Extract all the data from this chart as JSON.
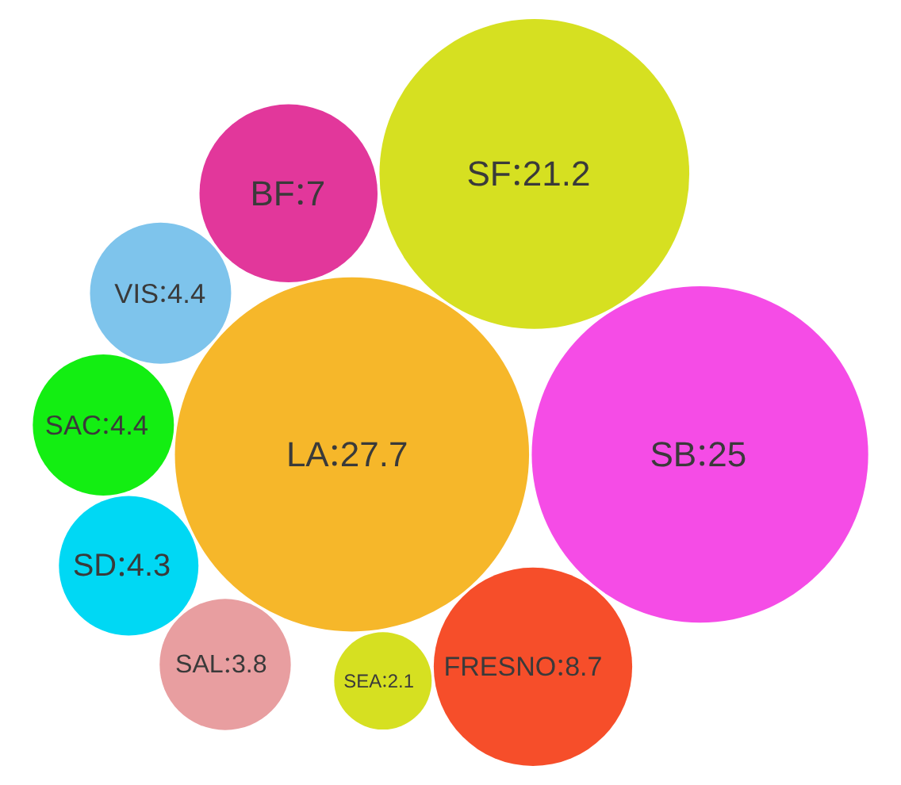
{
  "chart_data": {
    "type": "other",
    "categories": [
      "LA",
      "SB",
      "SF",
      "FRESNO",
      "BF",
      "VIS",
      "SAC",
      "SD",
      "SAL",
      "SEA"
    ],
    "values": [
      27.7,
      25,
      21.2,
      8.7,
      7,
      4.4,
      4.4,
      4.3,
      3.8,
      2.1
    ],
    "data_labels": true,
    "colors": [
      "#f6b72a",
      "#f54ce6",
      "#d6e021",
      "#f64e2a",
      "#e2379b",
      "#7ec4ec",
      "#13ee12",
      "#00d8f4",
      "#e89ea0",
      "#d6e021"
    ]
  }
}
